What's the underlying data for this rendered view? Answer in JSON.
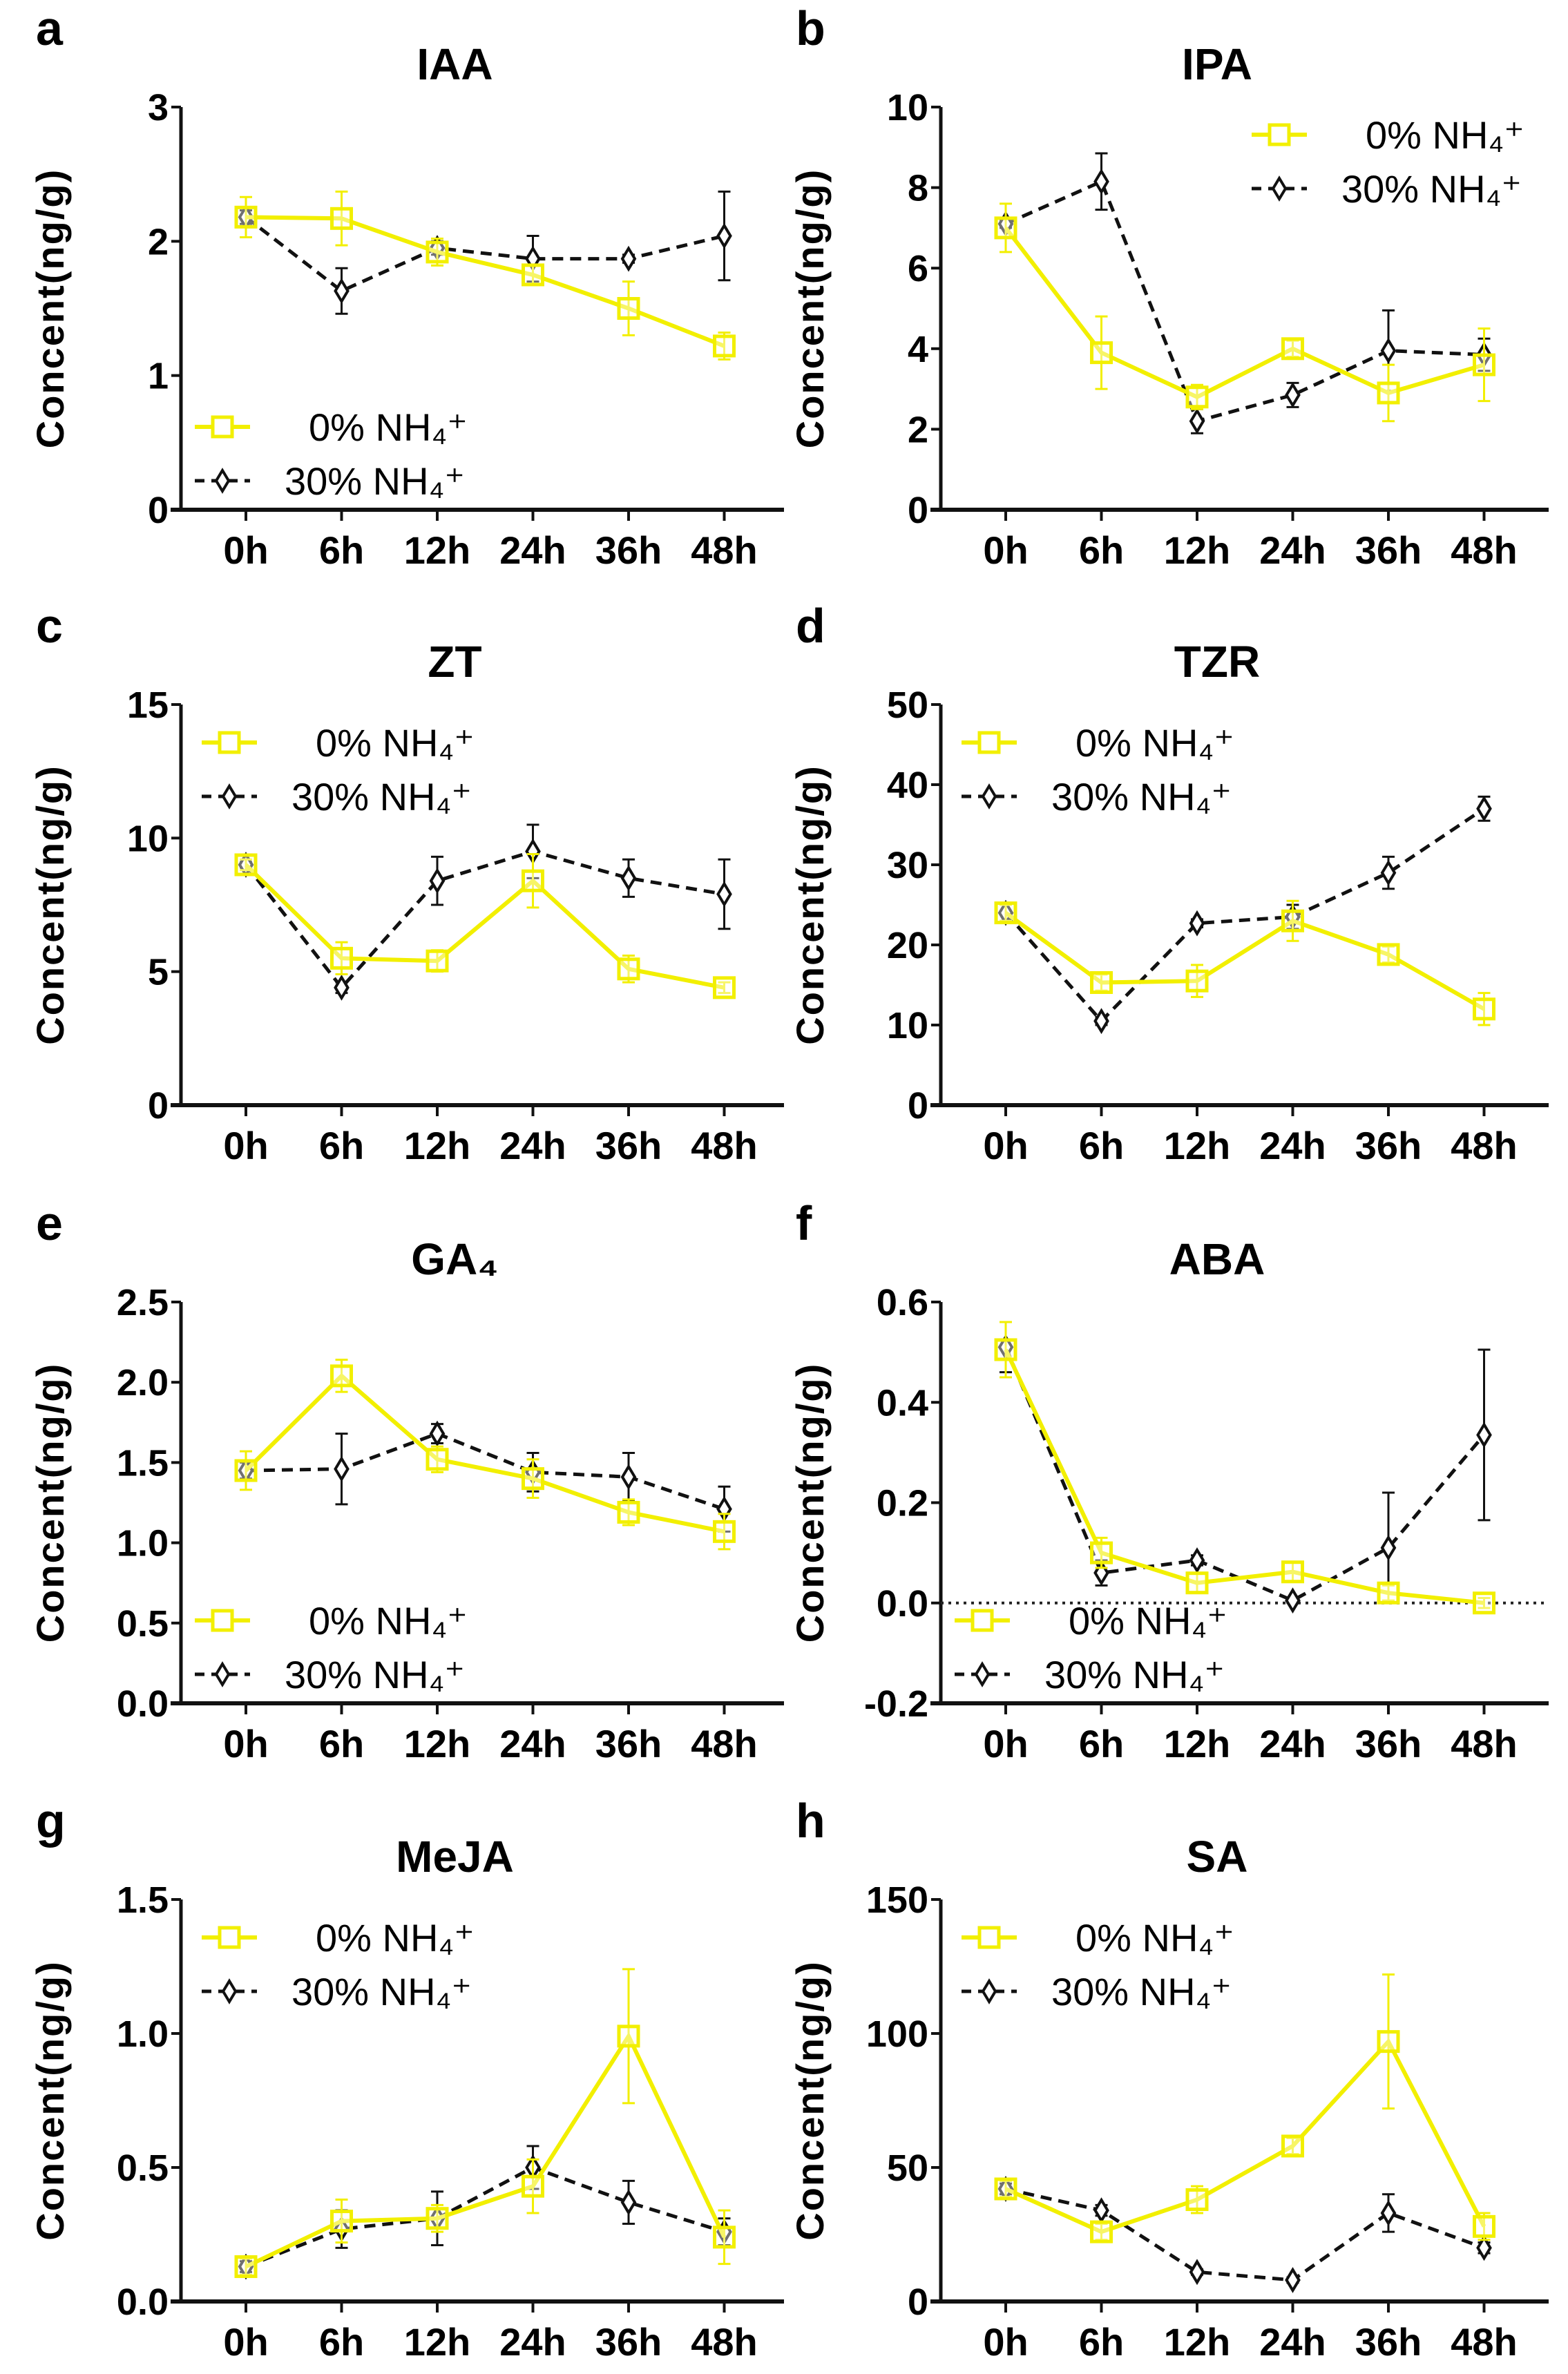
{
  "chart_data": [
    {
      "panel": "a",
      "type": "line",
      "title": "IAA",
      "ylabel": "Concent(ng/g)",
      "categories": [
        "0h",
        "6h",
        "12h",
        "24h",
        "36h",
        "48h"
      ],
      "ylim": [
        0,
        3
      ],
      "yticks": [
        "0",
        "1",
        "2",
        "3"
      ],
      "ytick_values": [
        0,
        1,
        2,
        3
      ],
      "legend": "bottom-left",
      "zero_line": false,
      "series": [
        {
          "name": "0% NH₄⁺",
          "values": [
            2.18,
            2.17,
            1.92,
            1.75,
            1.5,
            1.22
          ],
          "errors": [
            0.15,
            0.2,
            0.1,
            0.07,
            0.2,
            0.1
          ]
        },
        {
          "name": "30% NH₄⁺",
          "values": [
            2.18,
            1.63,
            1.95,
            1.87,
            1.87,
            2.04
          ],
          "errors": [
            0.05,
            0.17,
            0.05,
            0.17,
            0.03,
            0.33
          ]
        }
      ]
    },
    {
      "panel": "b",
      "type": "line",
      "title": "IPA",
      "ylabel": "Concent(ng/g)",
      "categories": [
        "0h",
        "6h",
        "12h",
        "24h",
        "36h",
        "48h"
      ],
      "ylim": [
        0,
        10
      ],
      "yticks": [
        "0",
        "2",
        "4",
        "6",
        "8",
        "10"
      ],
      "ytick_values": [
        0,
        2,
        4,
        6,
        8,
        10
      ],
      "legend": "top-right",
      "zero_line": false,
      "series": [
        {
          "name": "0% NH₄⁺",
          "values": [
            7.0,
            3.9,
            2.8,
            4.0,
            2.9,
            3.6
          ],
          "errors": [
            0.6,
            0.9,
            0.3,
            0.2,
            0.7,
            0.9
          ]
        },
        {
          "name": "30% NH₄⁺",
          "values": [
            7.1,
            8.15,
            2.2,
            2.85,
            3.95,
            3.85
          ],
          "errors": [
            0.1,
            0.7,
            0.3,
            0.3,
            1.0,
            0.4
          ]
        }
      ]
    },
    {
      "panel": "c",
      "type": "line",
      "title": "ZT",
      "ylabel": "Concent(ng/g)",
      "categories": [
        "0h",
        "6h",
        "12h",
        "24h",
        "36h",
        "48h"
      ],
      "ylim": [
        0,
        15
      ],
      "yticks": [
        "0",
        "5",
        "10",
        "15"
      ],
      "ytick_values": [
        0,
        5,
        10,
        15
      ],
      "legend": "top-left",
      "zero_line": false,
      "series": [
        {
          "name": "0% NH₄⁺",
          "values": [
            9.0,
            5.5,
            5.4,
            8.4,
            5.1,
            4.4
          ],
          "errors": [
            0.2,
            0.6,
            0.4,
            1.0,
            0.5,
            0.2
          ]
        },
        {
          "name": "30% NH₄⁺",
          "values": [
            9.0,
            4.4,
            8.4,
            9.5,
            8.5,
            7.9
          ],
          "errors": [
            0.1,
            0.2,
            0.9,
            1.0,
            0.7,
            1.3
          ]
        }
      ]
    },
    {
      "panel": "d",
      "type": "line",
      "title": "TZR",
      "ylabel": "Concent(ng/g)",
      "categories": [
        "0h",
        "6h",
        "12h",
        "24h",
        "36h",
        "48h"
      ],
      "ylim": [
        0,
        50
      ],
      "yticks": [
        "0",
        "10",
        "20",
        "30",
        "40",
        "50"
      ],
      "ytick_values": [
        0,
        10,
        20,
        30,
        40,
        50
      ],
      "legend": "top-left",
      "zero_line": false,
      "series": [
        {
          "name": "0% NH₄⁺",
          "values": [
            24,
            15.3,
            15.5,
            23,
            18.8,
            12
          ],
          "errors": [
            1,
            1,
            2,
            2.5,
            1,
            2
          ]
        },
        {
          "name": "30% NH₄⁺",
          "values": [
            24,
            10.5,
            22.7,
            23.5,
            29,
            37
          ],
          "errors": [
            1,
            0.5,
            0.5,
            1.5,
            2,
            1.5
          ]
        }
      ]
    },
    {
      "panel": "e",
      "type": "line",
      "title": "GA₄",
      "ylabel": "Concent(ng/g)",
      "categories": [
        "0h",
        "6h",
        "12h",
        "24h",
        "36h",
        "48h"
      ],
      "ylim": [
        0,
        2.5
      ],
      "yticks": [
        "0.0",
        "0.5",
        "1.0",
        "1.5",
        "2.0",
        "2.5"
      ],
      "ytick_values": [
        0,
        0.5,
        1,
        1.5,
        2,
        2.5
      ],
      "legend": "bottom-left",
      "zero_line": false,
      "series": [
        {
          "name": "0% NH₄⁺",
          "values": [
            1.45,
            2.04,
            1.52,
            1.4,
            1.19,
            1.07
          ],
          "errors": [
            0.12,
            0.1,
            0.08,
            0.12,
            0.08,
            0.11
          ]
        },
        {
          "name": "30% NH₄⁺",
          "values": [
            1.45,
            1.46,
            1.68,
            1.44,
            1.41,
            1.21
          ],
          "errors": [
            0.05,
            0.22,
            0.06,
            0.12,
            0.15,
            0.14
          ]
        }
      ]
    },
    {
      "panel": "f",
      "type": "line",
      "title": "ABA",
      "ylabel": "Concent(ng/g)",
      "categories": [
        "0h",
        "6h",
        "12h",
        "24h",
        "36h",
        "48h"
      ],
      "ylim": [
        -0.2,
        0.6
      ],
      "yticks": [
        "-0.2",
        "0.0",
        "0.2",
        "0.4",
        "0.6"
      ],
      "ytick_values": [
        -0.2,
        0,
        0.2,
        0.4,
        0.6
      ],
      "legend": "bottom-left",
      "zero_line": true,
      "series": [
        {
          "name": "0% NH₄⁺",
          "values": [
            0.505,
            0.1,
            0.04,
            0.062,
            0.02,
            0.0
          ],
          "errors": [
            0.055,
            0.03,
            0.02,
            0.02,
            0.015,
            0.01
          ]
        },
        {
          "name": "30% NH₄⁺",
          "values": [
            0.51,
            0.06,
            0.085,
            0.005,
            0.11,
            0.335
          ],
          "errors": [
            0.05,
            0.025,
            0.01,
            0.005,
            0.11,
            0.17
          ]
        }
      ]
    },
    {
      "panel": "g",
      "type": "line",
      "title": "MeJA",
      "ylabel": "Concent(ng/g)",
      "categories": [
        "0h",
        "6h",
        "12h",
        "24h",
        "36h",
        "48h"
      ],
      "ylim": [
        0,
        1.5
      ],
      "yticks": [
        "0.0",
        "0.5",
        "1.0",
        "1.5"
      ],
      "ytick_values": [
        0,
        0.5,
        1,
        1.5
      ],
      "legend": "top-left",
      "zero_line": false,
      "series": [
        {
          "name": "0% NH₄⁺",
          "values": [
            0.13,
            0.3,
            0.31,
            0.43,
            0.99,
            0.24
          ],
          "errors": [
            0.03,
            0.08,
            0.05,
            0.1,
            0.25,
            0.1
          ]
        },
        {
          "name": "30% NH₄⁺",
          "values": [
            0.13,
            0.27,
            0.31,
            0.5,
            0.37,
            0.26
          ],
          "errors": [
            0.02,
            0.07,
            0.1,
            0.08,
            0.08,
            0.05
          ]
        }
      ]
    },
    {
      "panel": "h",
      "type": "line",
      "title": "SA",
      "ylabel": "Concent(ng/g)",
      "categories": [
        "0h",
        "6h",
        "12h",
        "24h",
        "36h",
        "48h"
      ],
      "ylim": [
        0,
        150
      ],
      "yticks": [
        "0",
        "50",
        "100",
        "150"
      ],
      "ytick_values": [
        0,
        50,
        100,
        150
      ],
      "legend": "top-left",
      "zero_line": false,
      "series": [
        {
          "name": "0% NH₄⁺",
          "values": [
            42,
            26,
            38,
            58,
            97,
            28
          ],
          "errors": [
            3,
            3,
            5,
            3,
            25,
            5
          ]
        },
        {
          "name": "30% NH₄⁺",
          "values": [
            42,
            34,
            11,
            8,
            33,
            20
          ],
          "errors": [
            2,
            2,
            1,
            1,
            7,
            2
          ]
        }
      ]
    }
  ],
  "colors": {
    "series_0": "#f2ef00",
    "series_1": "#111111",
    "axis": "#111111"
  },
  "markers": {
    "series_0": "open-square",
    "series_1": "open-diamond"
  },
  "line_styles": {
    "series_0": "solid",
    "series_1": "dashed"
  }
}
